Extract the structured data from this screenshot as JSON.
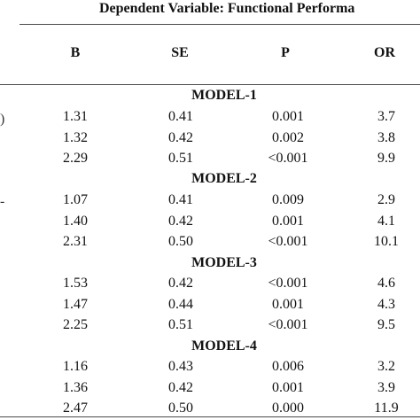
{
  "header": {
    "title": "Dependent Variable: Functional Performa"
  },
  "columns": {
    "b": "B",
    "se": "SE",
    "p": "P",
    "or": "OR"
  },
  "left_marks": [
    ")",
    "-"
  ],
  "models": [
    {
      "label": "MODEL-1",
      "rows": [
        {
          "b": "1.31",
          "se": "0.41",
          "p": "0.001",
          "or": "3.7"
        },
        {
          "b": "1.32",
          "se": "0.42",
          "p": "0.002",
          "or": "3.8"
        },
        {
          "b": "2.29",
          "se": "0.51",
          "p": "<0.001",
          "or": "9.9"
        }
      ]
    },
    {
      "label": "MODEL-2",
      "rows": [
        {
          "b": "1.07",
          "se": "0.41",
          "p": "0.009",
          "or": "2.9"
        },
        {
          "b": "1.40",
          "se": "0.42",
          "p": "0.001",
          "or": "4.1"
        },
        {
          "b": "2.31",
          "se": "0.50",
          "p": "<0.001",
          "or": "10.1"
        }
      ]
    },
    {
      "label": "MODEL-3",
      "rows": [
        {
          "b": "1.53",
          "se": "0.42",
          "p": "<0.001",
          "or": "4.6"
        },
        {
          "b": "1.47",
          "se": "0.44",
          "p": "0.001",
          "or": "4.3"
        },
        {
          "b": "2.25",
          "se": "0.51",
          "p": "<0.001",
          "or": "9.5"
        }
      ]
    },
    {
      "label": "MODEL-4",
      "rows": [
        {
          "b": "1.16",
          "se": "0.43",
          "p": "0.006",
          "or": "3.2"
        },
        {
          "b": "1.36",
          "se": "0.42",
          "p": "0.001",
          "or": "3.9"
        },
        {
          "b": "2.47",
          "se": "0.50",
          "p": "0.000",
          "or": "11.9"
        }
      ]
    }
  ]
}
